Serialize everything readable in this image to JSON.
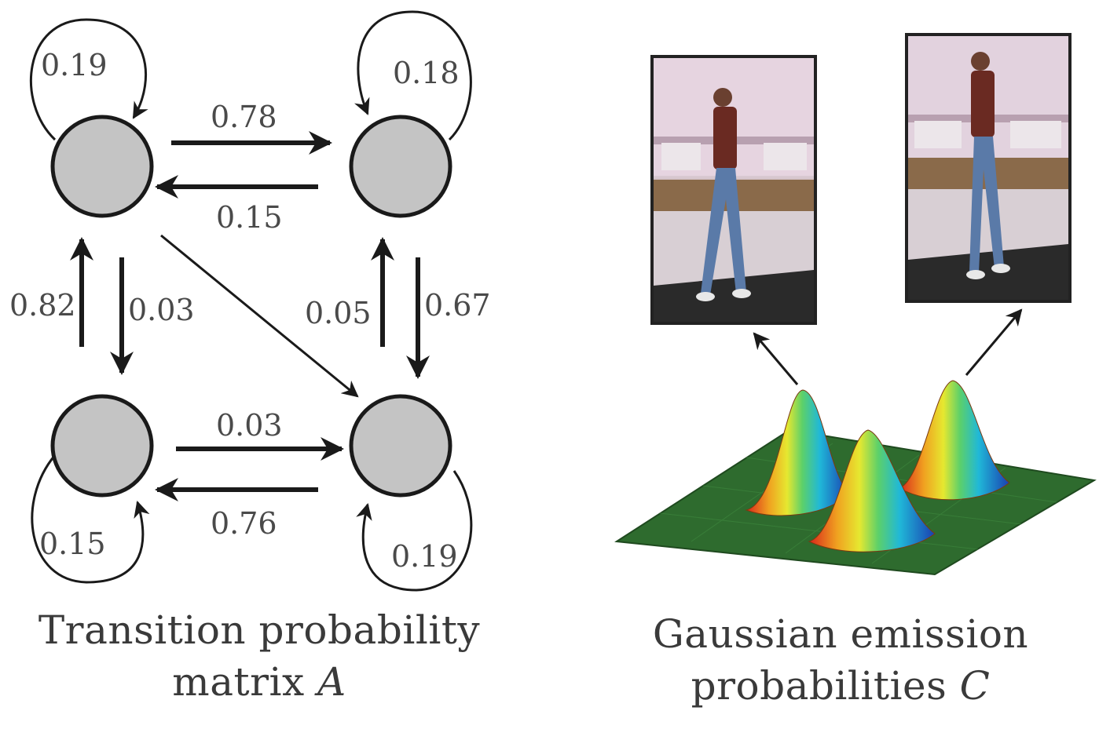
{
  "left_panel": {
    "edges": {
      "s1_self": "0.19",
      "s2_self": "0.18",
      "s1_to_s2": "0.78",
      "s2_to_s1": "0.15",
      "s3_to_s1": "0.82",
      "s1_to_s3": "0.03",
      "s4_to_s2": "0.05",
      "s2_to_s4": "0.67",
      "s3_to_s4": "0.03",
      "s4_to_s3": "0.76",
      "s3_self": "0.15",
      "s4_self": "0.19"
    },
    "caption_line1": "Transition probability",
    "caption_line2": "matrix",
    "caption_var": "A"
  },
  "right_panel": {
    "caption_line1": "Gaussian emission",
    "caption_line2": "probabilities",
    "caption_var": "C"
  },
  "colors": {
    "node_fill": "#c4c4c4",
    "stroke": "#1a1a1a",
    "label": "#4a4a4a",
    "floor": "#2e6b2e"
  }
}
